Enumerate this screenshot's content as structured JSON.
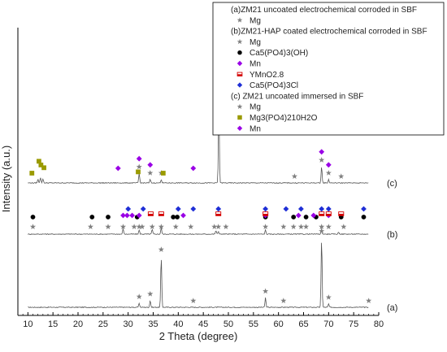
{
  "chart_data": {
    "type": "line",
    "xlabel": "2 Theta (degree)",
    "ylabel": "Intensity (a.u.)",
    "xlim": [
      8,
      80
    ],
    "xticks": [
      10,
      15,
      20,
      25,
      30,
      35,
      40,
      45,
      50,
      55,
      60,
      65,
      70,
      75,
      80
    ],
    "grid": false,
    "legend_placement": "top-right",
    "legend": [
      {
        "text": "(a)ZM21 uncoated electrochemical corroded in SBF",
        "marker": "none",
        "color": ""
      },
      {
        "text": "Mg",
        "marker": "star",
        "color": "#808080"
      },
      {
        "text": "(b)ZM21-HAP coated electrochemical corroded in SBF",
        "marker": "none",
        "color": ""
      },
      {
        "text": "Mg",
        "marker": "star",
        "color": "#808080"
      },
      {
        "text": "Ca5(PO4)3(OH)",
        "marker": "circle",
        "color": "#000000"
      },
      {
        "text": "Mn",
        "marker": "diamond",
        "color": "#9a00e6"
      },
      {
        "text": "YMnO2.8",
        "marker": "halfsquare",
        "color": "#d40000"
      },
      {
        "text": "Ca5(PO4)3Cl",
        "marker": "diamond",
        "color": "#1f2fd6"
      },
      {
        "text": "(c) ZM21 uncoated immersed in SBF",
        "marker": "none",
        "color": ""
      },
      {
        "text": "Mg",
        "marker": "star",
        "color": "#808080"
      },
      {
        "text": "Mg3(PO4)210H2O",
        "marker": "square",
        "color": "#9a9a00"
      },
      {
        "text": "Mn",
        "marker": "diamond",
        "color": "#9a00e6"
      }
    ],
    "series": [
      {
        "name": "(a)",
        "baseline": 0,
        "peaks": [
          [
            32.2,
            6
          ],
          [
            34.4,
            10
          ],
          [
            36.6,
            75
          ],
          [
            57.4,
            14
          ],
          [
            68.6,
            102
          ],
          [
            70.0,
            5
          ]
        ],
        "markers": [
          {
            "symbol": "star",
            "color": "#808080",
            "x": [
              32.2,
              34.4,
              36.6,
              43.0,
              57.4,
              61.0,
              68.6,
              70.0,
              78.0
            ]
          }
        ]
      },
      {
        "name": "(b)",
        "baseline": 100,
        "peaks": [
          [
            29.0,
            8
          ],
          [
            32.2,
            6
          ],
          [
            34.8,
            7
          ],
          [
            36.6,
            9
          ],
          [
            47.5,
            5
          ],
          [
            48.0,
            4
          ],
          [
            57.4,
            6
          ],
          [
            68.6,
            8
          ],
          [
            72.0,
            3
          ]
        ],
        "markers": [
          {
            "symbol": "star",
            "color": "#808080",
            "x": [
              11.0,
              22.5,
              26.0,
              29.0,
              31.2,
              32.2,
              32.8,
              34.8,
              36.6,
              39.5,
              42.5,
              47.2,
              48.0,
              49.5,
              57.4,
              61.0,
              63.0,
              64.5,
              65.5,
              68.6,
              70.0,
              73.0
            ]
          },
          {
            "symbol": "circle",
            "color": "#000000",
            "x": [
              11.0,
              22.8,
              26.0,
              31.8,
              39.0,
              39.8,
              57.4,
              63.0,
              65.5,
              67.5,
              72.5,
              77.0
            ]
          },
          {
            "symbol": "diamond",
            "color": "#9a00e6",
            "x": [
              29.0,
              29.8,
              30.8,
              32.2,
              41.0,
              57.4,
              64.0,
              67.0,
              70.0
            ]
          },
          {
            "symbol": "halfsquare",
            "color": "#d40000",
            "x": [
              34.5,
              36.6,
              48.0,
              57.4,
              68.6,
              70.0,
              72.5
            ]
          },
          {
            "symbol": "diamond",
            "color": "#1f2fd6",
            "x": [
              30.0,
              33.0,
              40.0,
              43.0,
              48.0,
              57.4,
              61.5,
              64.5,
              68.6,
              70.0,
              77.0
            ]
          }
        ]
      },
      {
        "name": "(c)",
        "baseline": 205,
        "peaks": [
          [
            12.0,
            5
          ],
          [
            12.5,
            8
          ],
          [
            13.0,
            6
          ],
          [
            32.2,
            14
          ],
          [
            34.4,
            5
          ],
          [
            36.6,
            5
          ],
          [
            48.1,
            106
          ],
          [
            68.6,
            24
          ],
          [
            70.0,
            5
          ]
        ],
        "markers": [
          {
            "symbol": "star",
            "color": "#808080",
            "x": [
              32.2,
              34.4,
              36.6,
              48.1,
              63.2,
              68.6,
              70.0,
              72.5
            ]
          },
          {
            "symbol": "square",
            "color": "#9a9a00",
            "x": [
              10.8,
              12.2,
              12.6,
              13.2,
              32.0,
              37.0
            ]
          },
          {
            "symbol": "diamond",
            "color": "#9a00e6",
            "x": [
              28.0,
              32.2,
              34.4,
              43.0,
              48.1,
              68.6,
              70.0
            ]
          }
        ]
      }
    ]
  }
}
